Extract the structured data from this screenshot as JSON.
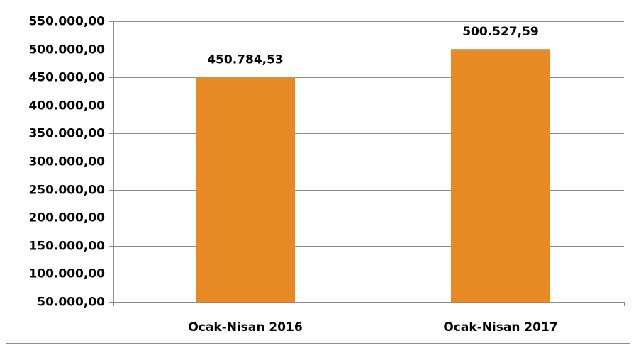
{
  "chart_data": {
    "type": "bar",
    "categories": [
      "Ocak-Nisan 2016",
      "Ocak-Nisan 2017"
    ],
    "values": [
      450784.53,
      500527.59
    ],
    "value_labels": [
      "450.784,53",
      "500.527,59"
    ],
    "color": "#e88a24",
    "ylim": [
      50000,
      550000
    ],
    "yticks": [
      {
        "value": 50000,
        "label": "50.000,00"
      },
      {
        "value": 100000,
        "label": "100.000,00"
      },
      {
        "value": 150000,
        "label": "150.000,00"
      },
      {
        "value": 200000,
        "label": "200.000,00"
      },
      {
        "value": 250000,
        "label": "250.000,00"
      },
      {
        "value": 300000,
        "label": "300.000,00"
      },
      {
        "value": 350000,
        "label": "350.000,00"
      },
      {
        "value": 400000,
        "label": "400.000,00"
      },
      {
        "value": 450000,
        "label": "450.000,00"
      },
      {
        "value": 500000,
        "label": "500.000,00"
      },
      {
        "value": 550000,
        "label": "550.000,00"
      }
    ],
    "grid": true
  }
}
